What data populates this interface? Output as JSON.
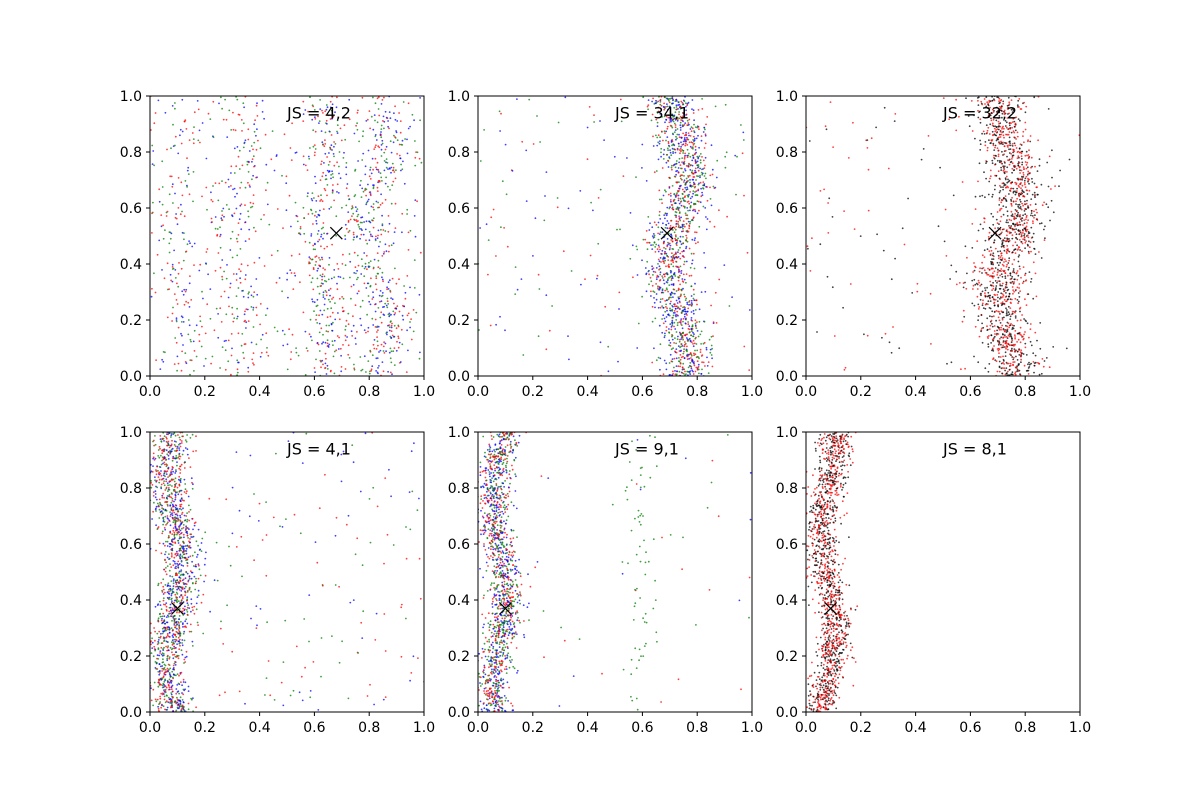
{
  "chart_data": [
    {
      "type": "scatter",
      "annotation": "JS = 4,2",
      "xlim": [
        0,
        1
      ],
      "ylim": [
        0,
        1
      ],
      "xticks": [
        "0.0",
        "0.2",
        "0.4",
        "0.6",
        "0.8",
        "1.0"
      ],
      "yticks": [
        "0.0",
        "0.2",
        "0.4",
        "0.6",
        "0.8",
        "1.0"
      ],
      "marker": {
        "x": 0.68,
        "y": 0.51,
        "symbol": "x"
      },
      "series": [
        {
          "color": "#0000ff"
        },
        {
          "color": "#ff0000"
        },
        {
          "color": "#008000"
        }
      ],
      "bands": [
        {
          "center": 0.83,
          "width": 0.045,
          "amp": 0.035,
          "weight": 0.26
        },
        {
          "center": 0.63,
          "width": 0.04,
          "amp": 0.03,
          "weight": 0.22
        },
        {
          "center": 0.33,
          "width": 0.04,
          "amp": 0.03,
          "weight": 0.12
        },
        {
          "center": 0.1,
          "width": 0.04,
          "amp": 0.03,
          "weight": 0.08
        },
        {
          "uniform": true,
          "weight": 0.32
        }
      ]
    },
    {
      "type": "scatter",
      "annotation": "JS = 34,1",
      "xlim": [
        0,
        1
      ],
      "ylim": [
        0,
        1
      ],
      "xticks": [
        "0.0",
        "0.2",
        "0.4",
        "0.6",
        "0.8",
        "1.0"
      ],
      "yticks": [
        "0.0",
        "0.2",
        "0.4",
        "0.6",
        "0.8",
        "1.0"
      ],
      "marker": {
        "x": 0.69,
        "y": 0.51,
        "symbol": "x"
      },
      "series": [
        {
          "color": "#0000ff"
        },
        {
          "color": "#ff0000"
        },
        {
          "color": "#008000"
        }
      ],
      "bands": [
        {
          "center": 0.73,
          "width": 0.045,
          "amp": 0.035,
          "weight": 0.9
        },
        {
          "uniform": true,
          "weight": 0.1
        }
      ]
    },
    {
      "type": "scatter",
      "annotation": "JS = 32,2",
      "xlim": [
        0,
        1
      ],
      "ylim": [
        0,
        1
      ],
      "xticks": [
        "0.0",
        "0.2",
        "0.4",
        "0.6",
        "0.8",
        "1.0"
      ],
      "yticks": [
        "0.0",
        "0.2",
        "0.4",
        "0.6",
        "0.8",
        "1.0"
      ],
      "marker": {
        "x": 0.69,
        "y": 0.51,
        "symbol": "x"
      },
      "series": [
        {
          "color": "#000000"
        },
        {
          "color": "#ff0000"
        }
      ],
      "bands": [
        {
          "center": 0.74,
          "width": 0.05,
          "amp": 0.035,
          "weight": 0.92
        },
        {
          "uniform": true,
          "weight": 0.08
        }
      ]
    },
    {
      "type": "scatter",
      "annotation": "JS = 4,1",
      "xlim": [
        0,
        1
      ],
      "ylim": [
        0,
        1
      ],
      "xticks": [
        "0.0",
        "0.2",
        "0.4",
        "0.6",
        "0.8",
        "1.0"
      ],
      "yticks": [
        "0.0",
        "0.2",
        "0.4",
        "0.6",
        "0.8",
        "1.0"
      ],
      "marker": {
        "x": 0.1,
        "y": 0.37,
        "symbol": "x"
      },
      "series": [
        {
          "color": "#0000ff"
        },
        {
          "color": "#ff0000"
        },
        {
          "color": "#008000"
        }
      ],
      "bands": [
        {
          "center": 0.09,
          "width": 0.035,
          "amp": 0.025,
          "weight": 0.88
        },
        {
          "uniform": true,
          "weight": 0.12
        }
      ]
    },
    {
      "type": "scatter",
      "annotation": "JS = 9,1",
      "xlim": [
        0,
        1
      ],
      "ylim": [
        0,
        1
      ],
      "xticks": [
        "0.0",
        "0.2",
        "0.4",
        "0.6",
        "0.8",
        "1.0"
      ],
      "yticks": [
        "0.0",
        "0.2",
        "0.4",
        "0.6",
        "0.8",
        "1.0"
      ],
      "marker": {
        "x": 0.1,
        "y": 0.37,
        "symbol": "x"
      },
      "series": [
        {
          "color": "#0000ff"
        },
        {
          "color": "#ff0000"
        },
        {
          "color": "#008000"
        }
      ],
      "bands": [
        {
          "center": 0.08,
          "width": 0.03,
          "amp": 0.025,
          "weight": 0.93
        },
        {
          "center": 0.59,
          "width": 0.03,
          "amp": 0.02,
          "weight": 0.04,
          "series_only": 2
        },
        {
          "uniform": true,
          "weight": 0.03
        }
      ]
    },
    {
      "type": "scatter",
      "annotation": "JS = 8,1",
      "xlim": [
        0,
        1
      ],
      "ylim": [
        0,
        1
      ],
      "xticks": [
        "0.0",
        "0.2",
        "0.4",
        "0.6",
        "0.8",
        "1.0"
      ],
      "yticks": [
        "0.0",
        "0.2",
        "0.4",
        "0.6",
        "0.8",
        "1.0"
      ],
      "marker": {
        "x": 0.09,
        "y": 0.37,
        "symbol": "x"
      },
      "series": [
        {
          "color": "#000000"
        },
        {
          "color": "#ff0000"
        }
      ],
      "bands": [
        {
          "center": 0.08,
          "width": 0.03,
          "amp": 0.025,
          "weight": 1.0
        }
      ]
    }
  ]
}
